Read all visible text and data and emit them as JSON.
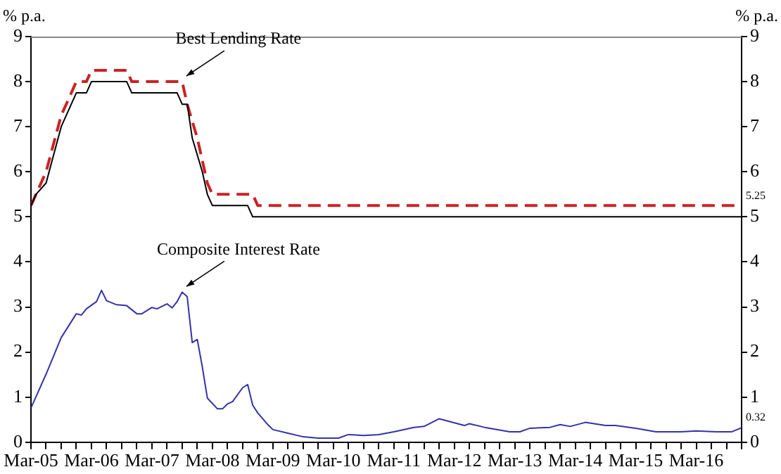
{
  "chart_data": {
    "type": "line",
    "ylabel": "% p.a.",
    "y2label": "% p.a.",
    "legend": false,
    "grid": false,
    "marker": "none",
    "xlim": [
      "2005-03",
      "2016-12"
    ],
    "ylim": [
      0,
      9
    ],
    "yticks": [
      0,
      1,
      2,
      3,
      4,
      5,
      6,
      7,
      8,
      9
    ],
    "y2lim": [
      0,
      9
    ],
    "y2ticks": [
      0,
      1,
      2,
      3,
      4,
      5,
      6,
      7,
      8,
      9
    ],
    "xticks": [
      {
        "value": "2005-03",
        "label": "Mar-05"
      },
      {
        "value": "2005-06",
        "label": null
      },
      {
        "value": "2005-09",
        "label": null
      },
      {
        "value": "2005-12",
        "label": null
      },
      {
        "value": "2006-03",
        "label": "Mar-06"
      },
      {
        "value": "2006-06",
        "label": null
      },
      {
        "value": "2006-09",
        "label": null
      },
      {
        "value": "2006-12",
        "label": null
      },
      {
        "value": "2007-03",
        "label": "Mar-07"
      },
      {
        "value": "2007-06",
        "label": null
      },
      {
        "value": "2007-09",
        "label": null
      },
      {
        "value": "2007-12",
        "label": null
      },
      {
        "value": "2008-03",
        "label": "Mar-08"
      },
      {
        "value": "2008-06",
        "label": null
      },
      {
        "value": "2008-09",
        "label": null
      },
      {
        "value": "2008-12",
        "label": null
      },
      {
        "value": "2009-03",
        "label": "Mar-09"
      },
      {
        "value": "2009-06",
        "label": null
      },
      {
        "value": "2009-09",
        "label": null
      },
      {
        "value": "2009-12",
        "label": null
      },
      {
        "value": "2010-03",
        "label": "Mar-10"
      },
      {
        "value": "2010-06",
        "label": null
      },
      {
        "value": "2010-09",
        "label": null
      },
      {
        "value": "2010-12",
        "label": null
      },
      {
        "value": "2011-03",
        "label": "Mar-11"
      },
      {
        "value": "2011-06",
        "label": null
      },
      {
        "value": "2011-09",
        "label": null
      },
      {
        "value": "2011-12",
        "label": null
      },
      {
        "value": "2012-03",
        "label": "Mar-12"
      },
      {
        "value": "2012-06",
        "label": null
      },
      {
        "value": "2012-09",
        "label": null
      },
      {
        "value": "2012-12",
        "label": null
      },
      {
        "value": "2013-03",
        "label": "Mar-13"
      },
      {
        "value": "2013-06",
        "label": null
      },
      {
        "value": "2013-09",
        "label": null
      },
      {
        "value": "2013-12",
        "label": null
      },
      {
        "value": "2014-03",
        "label": "Mar-14"
      },
      {
        "value": "2014-06",
        "label": null
      },
      {
        "value": "2014-09",
        "label": null
      },
      {
        "value": "2014-12",
        "label": null
      },
      {
        "value": "2015-03",
        "label": "Mar-15"
      },
      {
        "value": "2015-06",
        "label": null
      },
      {
        "value": "2015-09",
        "label": null
      },
      {
        "value": "2015-12",
        "label": null
      },
      {
        "value": "2016-03",
        "label": "Mar-16"
      },
      {
        "value": "2016-06",
        "label": null
      },
      {
        "value": "2016-09",
        "label": null
      },
      {
        "value": "2016-12",
        "label": null
      }
    ],
    "series": [
      {
        "color": "#000000",
        "line_style": "solid",
        "x": [
          "2005-03",
          "2005-04",
          "2005-06",
          "2005-09",
          "2005-12",
          "2006-02",
          "2006-03",
          "2006-10",
          "2006-11",
          "2007-08",
          "2007-09",
          "2007-10",
          "2007-11",
          "2008-01",
          "2008-02",
          "2008-03",
          "2008-10",
          "2008-11",
          "2016-12"
        ],
        "values": [
          5.25,
          5.5,
          5.75,
          7.0,
          7.75,
          7.75,
          8.0,
          8.0,
          7.75,
          7.75,
          7.5,
          7.5,
          6.75,
          6.0,
          5.5,
          5.25,
          5.25,
          5.0,
          5.0
        ]
      },
      {
        "color": "#cc2222",
        "line_style": "dashed",
        "x": [
          "2005-03",
          "2005-05",
          "2005-06",
          "2005-09",
          "2005-12",
          "2006-02",
          "2006-03",
          "2006-10",
          "2006-11",
          "2007-09",
          "2007-10",
          "2007-12",
          "2008-02",
          "2008-03",
          "2008-11",
          "2008-12",
          "2016-12"
        ],
        "values": [
          5.25,
          5.75,
          6.0,
          7.25,
          8.0,
          8.0,
          8.25,
          8.25,
          8.0,
          8.0,
          7.5,
          6.75,
          5.75,
          5.5,
          5.5,
          5.25,
          5.25
        ]
      },
      {
        "color": "#3333aa",
        "line_style": "solid",
        "x": [
          "2005-03",
          "2005-06",
          "2005-09",
          "2005-12",
          "2006-01",
          "2006-02",
          "2006-04",
          "2006-05",
          "2006-06",
          "2006-08",
          "2006-10",
          "2006-12",
          "2007-01",
          "2007-03",
          "2007-04",
          "2007-06",
          "2007-07",
          "2007-08",
          "2007-09",
          "2007-10",
          "2007-11",
          "2007-12",
          "2008-01",
          "2008-02",
          "2008-04",
          "2008-05",
          "2008-06",
          "2008-07",
          "2008-09",
          "2008-10",
          "2008-11",
          "2008-12",
          "2009-02",
          "2009-03",
          "2009-06",
          "2009-09",
          "2009-12",
          "2010-04",
          "2010-06",
          "2010-09",
          "2010-12",
          "2011-03",
          "2011-07",
          "2011-09",
          "2011-12",
          "2012-05",
          "2012-06",
          "2012-09",
          "2013-02",
          "2013-04",
          "2013-06",
          "2013-10",
          "2013-12",
          "2014-02",
          "2014-05",
          "2014-09",
          "2014-11",
          "2015-03",
          "2015-07",
          "2015-12",
          "2016-03",
          "2016-07",
          "2016-10",
          "2016-12"
        ],
        "values": [
          0.76,
          1.51,
          2.32,
          2.85,
          2.82,
          2.96,
          3.12,
          3.37,
          3.14,
          3.05,
          3.03,
          2.85,
          2.85,
          2.99,
          2.96,
          3.07,
          2.98,
          3.12,
          3.33,
          3.23,
          2.21,
          2.28,
          1.67,
          0.98,
          0.74,
          0.74,
          0.85,
          0.9,
          1.21,
          1.28,
          0.82,
          0.65,
          0.39,
          0.28,
          0.2,
          0.12,
          0.09,
          0.09,
          0.17,
          0.15,
          0.17,
          0.23,
          0.33,
          0.35,
          0.52,
          0.37,
          0.41,
          0.33,
          0.23,
          0.23,
          0.31,
          0.33,
          0.39,
          0.35,
          0.44,
          0.37,
          0.37,
          0.31,
          0.23,
          0.23,
          0.25,
          0.23,
          0.23,
          0.32
        ]
      }
    ],
    "annotations": [
      {
        "text": "Best Lending Rate",
        "x": "2007-09",
        "y": 8.0
      },
      {
        "text": "Composite Interest Rate",
        "x": "2007-09",
        "y": 3.33
      },
      {
        "text": "5.25",
        "x": "2016-12",
        "y": 5.25
      },
      {
        "text": "0.32",
        "x": "2016-12",
        "y": 0.32
      }
    ]
  }
}
